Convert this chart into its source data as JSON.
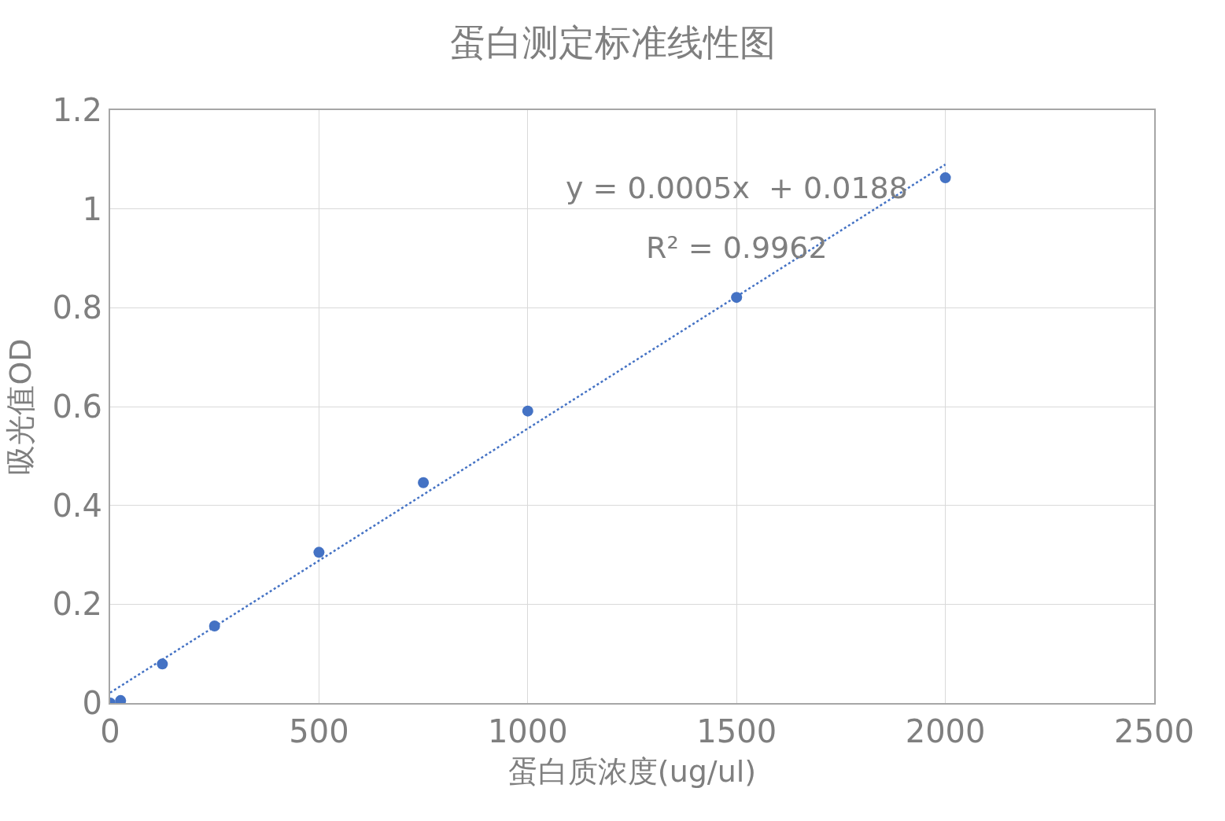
{
  "chart_data": {
    "type": "scatter",
    "title": "蛋白测定标准线性图",
    "xlabel": "蛋白质浓度(ug/ul)",
    "ylabel": "吸光值OD",
    "x": [
      0,
      25,
      125,
      250,
      500,
      750,
      1000,
      1500,
      2000
    ],
    "series": [
      {
        "color": "#4472c4",
        "marker": "circle",
        "values": [
          0,
          0.005,
          0.079,
          0.156,
          0.305,
          0.446,
          0.591,
          0.821,
          1.063
        ]
      },
      {
        "type": "line",
        "color": "#4472c4",
        "line_style": "dotted",
        "marker": "none",
        "x": [
          0,
          2000
        ],
        "values": [
          0.021,
          1.09
        ]
      }
    ],
    "annotations": [
      "y = 0.0005x  + 0.0188",
      "R² = 0.9962"
    ],
    "xlim": [
      0,
      2500
    ],
    "xticks": [
      0,
      500,
      1000,
      1500,
      2000,
      2500
    ],
    "ylim": [
      0,
      1.2
    ],
    "yticks": [
      0,
      0.2,
      0.4,
      0.6,
      0.8,
      1,
      1.2
    ],
    "grid": true,
    "legend": false
  }
}
